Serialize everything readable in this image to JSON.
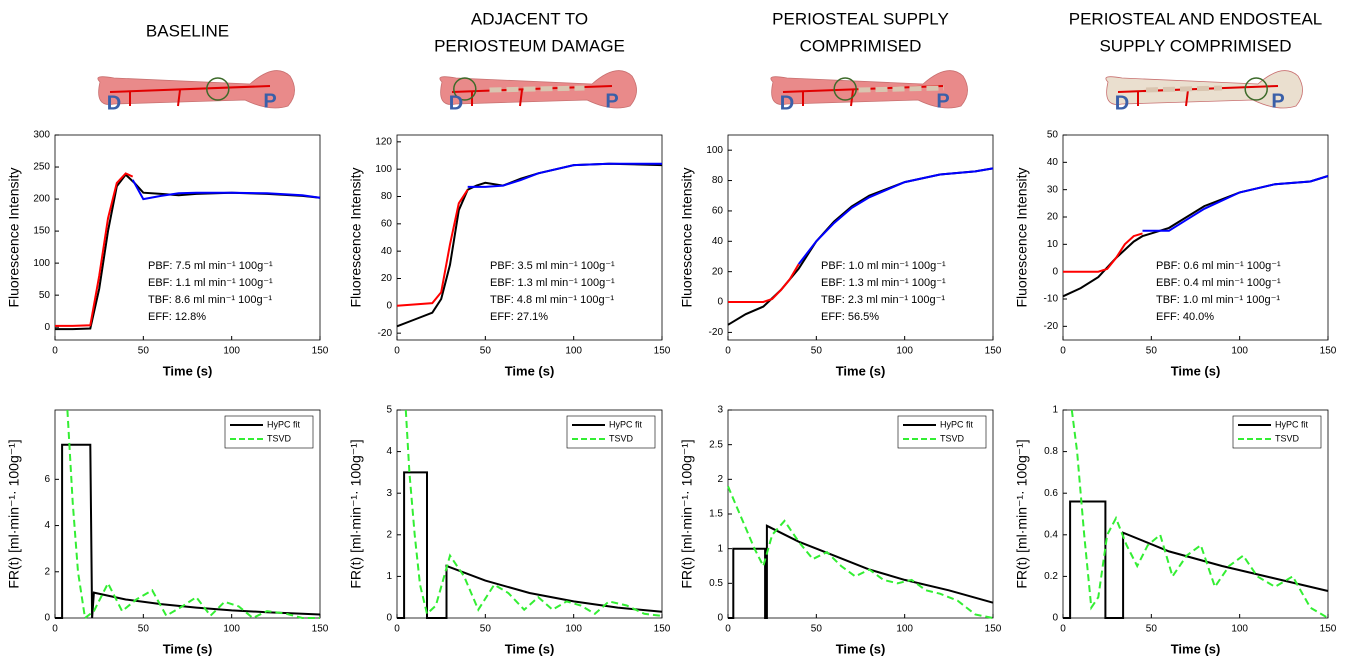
{
  "chart_data": [
    {
      "type": "line",
      "title": [
        "BASELINE"
      ],
      "bone_labels": [
        "D",
        "P"
      ],
      "xlabel": "Time (s)",
      "ylabel": "Fluorescence Intensity",
      "xlim": [
        0,
        150
      ],
      "xticks": [
        0,
        50,
        100,
        150
      ],
      "ylim": [
        -20,
        300
      ],
      "yticks": [
        0,
        50,
        100,
        150,
        200,
        250,
        300
      ],
      "annotations": [
        "PBF: 7.5 ml min⁻¹ 100g⁻¹",
        "EBF: 1.1 ml min⁻¹ 100g⁻¹",
        "TBF: 8.6 ml min⁻¹ 100g⁻¹",
        "EFF: 12.8%"
      ],
      "series": [
        {
          "color": "#000000",
          "x": [
            0,
            10,
            20,
            25,
            30,
            35,
            40,
            45,
            50,
            60,
            70,
            80,
            100,
            120,
            140,
            150
          ],
          "values": [
            -3,
            -3,
            -2,
            60,
            150,
            220,
            238,
            225,
            210,
            208,
            206,
            208,
            210,
            208,
            205,
            202
          ]
        },
        {
          "color": "#ff0000",
          "x": [
            0,
            10,
            20,
            25,
            30,
            35,
            40,
            44
          ],
          "values": [
            2,
            2,
            3,
            80,
            170,
            225,
            240,
            235
          ]
        },
        {
          "color": "#0000ff",
          "x": [
            44,
            50,
            60,
            70,
            80,
            100,
            120,
            140,
            150
          ],
          "values": [
            230,
            200,
            205,
            209,
            210,
            210,
            209,
            206,
            202
          ]
        }
      ]
    },
    {
      "type": "line",
      "title": [
        "ADJACENT TO",
        "PERIOSTEUM DAMAGE"
      ],
      "bone_labels": [
        "D",
        "P"
      ],
      "xlabel": "Time (s)",
      "ylabel": "Fluorescence Intensity",
      "xlim": [
        0,
        150
      ],
      "xticks": [
        0,
        50,
        100,
        150
      ],
      "ylim": [
        -25,
        125
      ],
      "yticks": [
        -20,
        0,
        20,
        40,
        60,
        80,
        100,
        120
      ],
      "annotations": [
        "PBF: 3.5 ml min⁻¹ 100g⁻¹",
        "EBF: 1.3 ml min⁻¹ 100g⁻¹",
        "TBF: 4.8 ml min⁻¹ 100g⁻¹",
        "EFF: 27.1%"
      ],
      "series": [
        {
          "color": "#000000",
          "x": [
            0,
            10,
            20,
            25,
            30,
            35,
            40,
            45,
            50,
            60,
            70,
            80,
            100,
            120,
            150
          ],
          "values": [
            -15,
            -10,
            -5,
            5,
            30,
            70,
            85,
            88,
            90,
            88,
            93,
            97,
            103,
            104,
            103
          ]
        },
        {
          "color": "#ff0000",
          "x": [
            0,
            20,
            25,
            30,
            35,
            40
          ],
          "values": [
            0,
            2,
            10,
            45,
            75,
            85
          ]
        },
        {
          "color": "#0000ff",
          "x": [
            40,
            50,
            60,
            70,
            80,
            100,
            120,
            140,
            150
          ],
          "values": [
            87,
            87,
            88,
            92,
            97,
            103,
            104,
            104,
            104
          ]
        }
      ]
    },
    {
      "type": "line",
      "title": [
        "PERIOSTEAL SUPPLY",
        "COMPRIMISED"
      ],
      "bone_labels": [
        "D",
        "P"
      ],
      "xlabel": "Time (s)",
      "ylabel": "Fluorescence Intensity",
      "xlim": [
        0,
        150
      ],
      "xticks": [
        0,
        50,
        100,
        150
      ],
      "ylim": [
        -25,
        110
      ],
      "yticks": [
        -20,
        0,
        20,
        40,
        60,
        80,
        100
      ],
      "annotations": [
        "PBF: 1.0 ml min⁻¹ 100g⁻¹",
        "EBF: 1.3 ml min⁻¹ 100g⁻¹",
        "TBF: 2.3 ml min⁻¹ 100g⁻¹",
        "EFF: 56.5%"
      ],
      "series": [
        {
          "color": "#000000",
          "x": [
            0,
            10,
            20,
            30,
            40,
            50,
            60,
            70,
            80,
            100,
            120,
            140,
            150
          ],
          "values": [
            -15,
            -8,
            -3,
            8,
            22,
            40,
            53,
            63,
            70,
            79,
            84,
            86,
            88
          ]
        },
        {
          "color": "#ff0000",
          "x": [
            0,
            20,
            25,
            30,
            35,
            40
          ],
          "values": [
            0,
            0,
            2,
            8,
            15,
            25
          ]
        },
        {
          "color": "#0000ff",
          "x": [
            40,
            50,
            60,
            70,
            80,
            100,
            120,
            140,
            150
          ],
          "values": [
            25,
            40,
            52,
            62,
            69,
            79,
            84,
            86,
            88
          ]
        }
      ]
    },
    {
      "type": "line",
      "title": [
        "PERIOSTEAL AND ENDOSTEAL",
        "SUPPLY COMPRIMISED"
      ],
      "bone_labels": [
        "D",
        "P"
      ],
      "xlabel": "Time (s)",
      "ylabel": "Fluorescence Intensity",
      "xlim": [
        0,
        150
      ],
      "xticks": [
        0,
        50,
        100,
        150
      ],
      "ylim": [
        -25,
        50
      ],
      "yticks": [
        -20,
        -10,
        0,
        10,
        20,
        30,
        40,
        50
      ],
      "annotations": [
        "PBF: 0.6 ml min⁻¹ 100g⁻¹",
        "EBF: 0.4 ml min⁻¹ 100g⁻¹",
        "TBF: 1.0 ml min⁻¹ 100g⁻¹",
        "EFF: 40.0%"
      ],
      "series": [
        {
          "color": "#000000",
          "x": [
            0,
            10,
            20,
            30,
            40,
            45,
            50,
            60,
            70,
            80,
            100,
            120,
            140,
            150
          ],
          "values": [
            -9,
            -6,
            -2,
            5,
            11,
            13,
            14,
            16,
            20,
            24,
            29,
            32,
            33,
            35
          ]
        },
        {
          "color": "#ff0000",
          "x": [
            0,
            20,
            25,
            30,
            35,
            40,
            45
          ],
          "values": [
            0,
            0,
            1,
            5,
            10,
            13,
            14
          ]
        },
        {
          "color": "#0000ff",
          "x": [
            45,
            50,
            60,
            70,
            80,
            100,
            120,
            140,
            150
          ],
          "values": [
            15,
            15,
            15,
            19,
            23,
            29,
            32,
            33,
            35
          ]
        }
      ]
    },
    {
      "type": "line",
      "xlabel": "Time (s)",
      "ylabel": "FR(t) [ml·min⁻¹· 100g⁻¹]",
      "legend": "upper right",
      "xlim": [
        0,
        150
      ],
      "xticks": [
        0,
        50,
        100,
        150
      ],
      "ylim": [
        0,
        9
      ],
      "yticks": [
        0,
        2,
        4,
        6
      ],
      "series": [
        {
          "name": "HyPC fit",
          "color": "#000000",
          "x": [
            0,
            4,
            4,
            20,
            21,
            22,
            40,
            60,
            80,
            100,
            120,
            150
          ],
          "values": [
            0,
            0,
            7.5,
            7.5,
            0,
            1.1,
            0.8,
            0.6,
            0.45,
            0.33,
            0.25,
            0.15
          ]
        },
        {
          "name": "TSVD",
          "color": "#33ee33",
          "dashed": true,
          "x": [
            7,
            10,
            13,
            17,
            22,
            30,
            38,
            46,
            55,
            63,
            72,
            80,
            88,
            96,
            104,
            112,
            120,
            130,
            140,
            150
          ],
          "values": [
            9,
            5,
            2,
            0,
            0.3,
            1.5,
            0.3,
            0.8,
            1.2,
            0.1,
            0.5,
            0.9,
            0.1,
            0.7,
            0.5,
            0,
            0.3,
            0.2,
            0,
            0
          ]
        }
      ]
    },
    {
      "type": "line",
      "xlabel": "Time (s)",
      "ylabel": "FR(t) [ml·min⁻¹· 100g⁻¹]",
      "legend": "upper right",
      "xlim": [
        0,
        150
      ],
      "xticks": [
        0,
        50,
        100,
        150
      ],
      "ylim": [
        0,
        5
      ],
      "yticks": [
        0,
        1,
        2,
        3,
        4,
        5
      ],
      "series": [
        {
          "name": "HyPC fit",
          "color": "#000000",
          "x": [
            0,
            4,
            4,
            17,
            17,
            28,
            28,
            50,
            75,
            100,
            125,
            150
          ],
          "values": [
            0,
            0,
            3.5,
            3.5,
            0,
            0,
            1.25,
            0.9,
            0.6,
            0.4,
            0.25,
            0.15
          ]
        },
        {
          "name": "TSVD",
          "color": "#33ee33",
          "dashed": true,
          "x": [
            5,
            7,
            10,
            13,
            17,
            22,
            30,
            38,
            46,
            55,
            63,
            72,
            80,
            88,
            96,
            104,
            112,
            120,
            130,
            140,
            150
          ],
          "values": [
            5,
            3.5,
            2,
            0.8,
            0.1,
            0.3,
            1.5,
            1.0,
            0.2,
            0.8,
            0.6,
            0.2,
            0.5,
            0.2,
            0.4,
            0.3,
            0.1,
            0.4,
            0.3,
            0.1,
            0.05
          ]
        }
      ]
    },
    {
      "type": "line",
      "xlabel": "Time (s)",
      "ylabel": "FR(t) [ml·min⁻¹· 100g⁻¹]",
      "legend": "upper right",
      "xlim": [
        0,
        150
      ],
      "xticks": [
        0,
        50,
        100,
        150
      ],
      "ylim": [
        0,
        3
      ],
      "yticks": [
        0,
        0.5,
        1,
        1.5,
        2,
        2.5,
        3
      ],
      "series": [
        {
          "name": "HyPC fit",
          "color": "#000000",
          "x": [
            0,
            3,
            3,
            21,
            21,
            22,
            22,
            40,
            60,
            80,
            100,
            125,
            150
          ],
          "values": [
            0,
            0,
            1,
            1,
            0,
            0,
            1.33,
            1.1,
            0.9,
            0.7,
            0.55,
            0.4,
            0.22
          ]
        },
        {
          "name": "TSVD",
          "color": "#33ee33",
          "dashed": true,
          "x": [
            0,
            5,
            10,
            15,
            20,
            25,
            32,
            40,
            48,
            56,
            64,
            72,
            80,
            88,
            96,
            104,
            112,
            120,
            130,
            140,
            150
          ],
          "values": [
            1.9,
            1.6,
            1.3,
            1.0,
            0.75,
            1.2,
            1.4,
            1.1,
            0.85,
            0.95,
            0.75,
            0.6,
            0.7,
            0.55,
            0.5,
            0.55,
            0.4,
            0.35,
            0.25,
            0.05,
            0
          ]
        }
      ]
    },
    {
      "type": "line",
      "xlabel": "Time (s)",
      "ylabel": "FR(t) [ml·min⁻¹· 100g⁻¹]",
      "legend": "upper right",
      "xlim": [
        0,
        150
      ],
      "xticks": [
        0,
        50,
        100,
        150
      ],
      "ylim": [
        0,
        1
      ],
      "yticks": [
        0,
        0.2,
        0.4,
        0.6,
        0.8,
        1
      ],
      "series": [
        {
          "name": "HyPC fit",
          "color": "#000000",
          "x": [
            0,
            4,
            4,
            24,
            24,
            34,
            34,
            60,
            90,
            120,
            150
          ],
          "values": [
            0,
            0,
            0.56,
            0.56,
            0,
            0,
            0.41,
            0.32,
            0.25,
            0.19,
            0.13
          ]
        },
        {
          "name": "TSVD",
          "color": "#33ee33",
          "dashed": true,
          "x": [
            5,
            8,
            12,
            16,
            20,
            25,
            30,
            36,
            42,
            48,
            55,
            62,
            70,
            78,
            86,
            94,
            102,
            110,
            120,
            130,
            140,
            150
          ],
          "values": [
            1,
            0.8,
            0.4,
            0.05,
            0.1,
            0.4,
            0.48,
            0.35,
            0.25,
            0.35,
            0.4,
            0.2,
            0.3,
            0.35,
            0.15,
            0.25,
            0.3,
            0.2,
            0.15,
            0.2,
            0.05,
            0
          ]
        }
      ]
    }
  ]
}
